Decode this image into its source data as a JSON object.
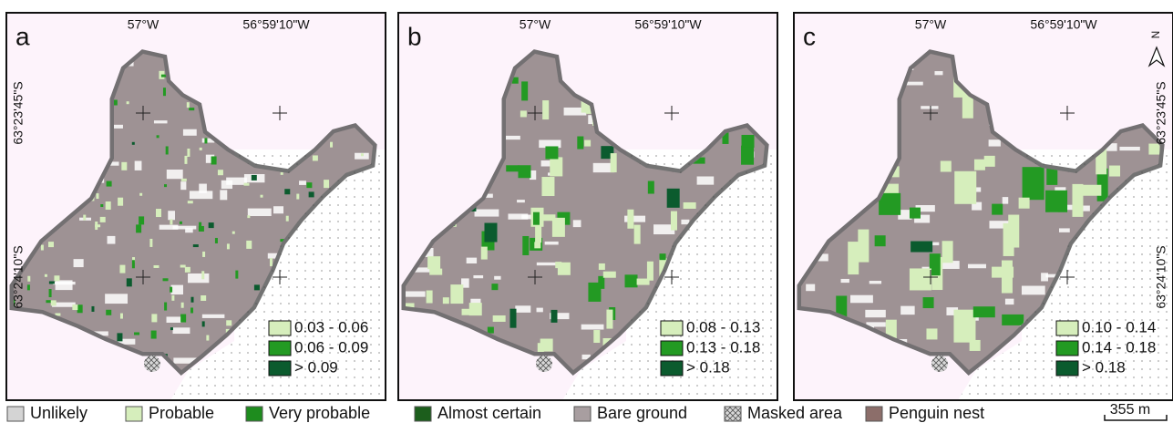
{
  "panels": [
    {
      "label": "a",
      "lon_labels": [
        "57°W",
        "56°59'10\"W"
      ],
      "lat_labels": [
        "63°23'45\"S",
        "63°24'10\"S"
      ],
      "legend": [
        "0.03 - 0.06",
        "0.06 - 0.09",
        "> 0.09"
      ]
    },
    {
      "label": "b",
      "lon_labels": [
        "57°W",
        "56°59'10\"W"
      ],
      "legend": [
        "0.08 - 0.13",
        "0.13 - 0.18",
        "> 0.18"
      ]
    },
    {
      "label": "c",
      "lon_labels": [
        "57°W",
        "56°59'10\"W"
      ],
      "lat_labels": [
        "63°23'45\"S",
        "63°24'10\"S"
      ],
      "legend": [
        "0.10 - 0.14",
        "0.14 - 0.18",
        "> 0.18"
      ],
      "north": "N"
    }
  ],
  "legend": [
    "Unlikely",
    "Probable",
    "Very probable",
    "Almost certain",
    "Bare ground",
    "Masked area",
    "Penguin nest"
  ],
  "scale": "355 m"
}
